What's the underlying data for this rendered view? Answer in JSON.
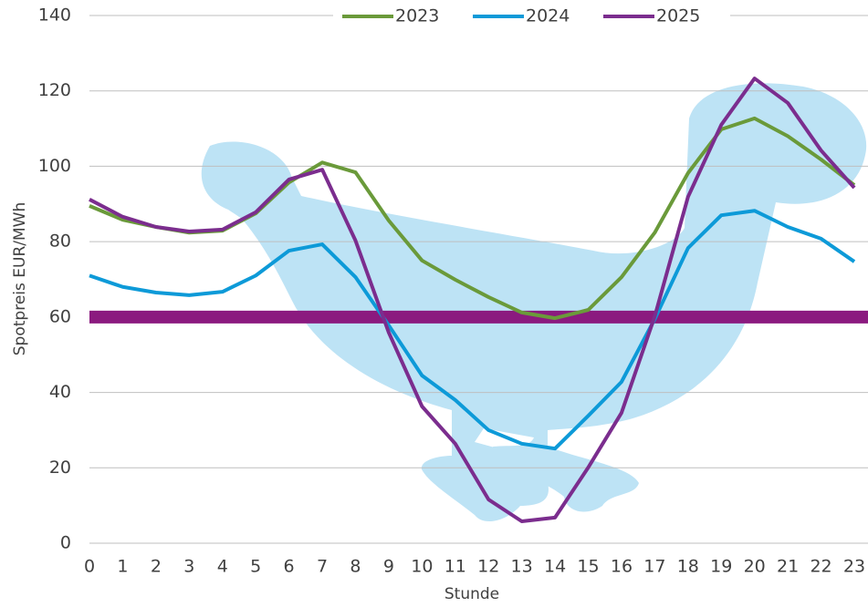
{
  "chart_data": {
    "type": "line",
    "y_label": "Spotpreis EUR/MWh",
    "x_label": "Stunde",
    "categories": [
      "0",
      "1",
      "2",
      "3",
      "4",
      "5",
      "6",
      "7",
      "8",
      "9",
      "10",
      "11",
      "12",
      "13",
      "14",
      "15",
      "16",
      "17",
      "18",
      "19",
      "20",
      "21",
      "22",
      "23"
    ],
    "series": [
      {
        "name": "2023",
        "color": "#6a9a3a",
        "values": [
          89.5,
          85.8,
          83.9,
          82.4,
          82.9,
          87.5,
          95.7,
          101,
          98.4,
          85.6,
          75,
          69.9,
          65.3,
          61.2,
          59.7,
          61.9,
          70.6,
          82.4,
          98.2,
          109.8,
          112.7,
          108,
          101.8,
          95
        ]
      },
      {
        "name": "2024",
        "color": "#0d9ad8",
        "values": [
          71,
          68,
          66.5,
          65.8,
          66.7,
          71,
          77.6,
          79.3,
          70.6,
          57.8,
          44.5,
          38,
          30,
          26.4,
          25.1,
          33.8,
          42.8,
          59.5,
          78.3,
          87,
          88.2,
          83.9,
          80.8,
          74.7
        ]
      },
      {
        "name": "2025",
        "color": "#7b2d8e",
        "values": [
          91.2,
          86.6,
          83.9,
          82.7,
          83.2,
          87.8,
          96.5,
          99.1,
          80.3,
          55.9,
          36.3,
          26.4,
          11.6,
          5.8,
          6.8,
          20.1,
          34.6,
          60.2,
          91.9,
          111,
          123.3,
          116.8,
          104.2,
          94.3
        ]
      }
    ],
    "reference_line": {
      "value": 60,
      "color": "#8b1a7f"
    },
    "ylim": [
      0,
      140
    ],
    "yticks": [
      0,
      20,
      40,
      60,
      80,
      100,
      120,
      140
    ],
    "grid": true,
    "legend": "top"
  }
}
